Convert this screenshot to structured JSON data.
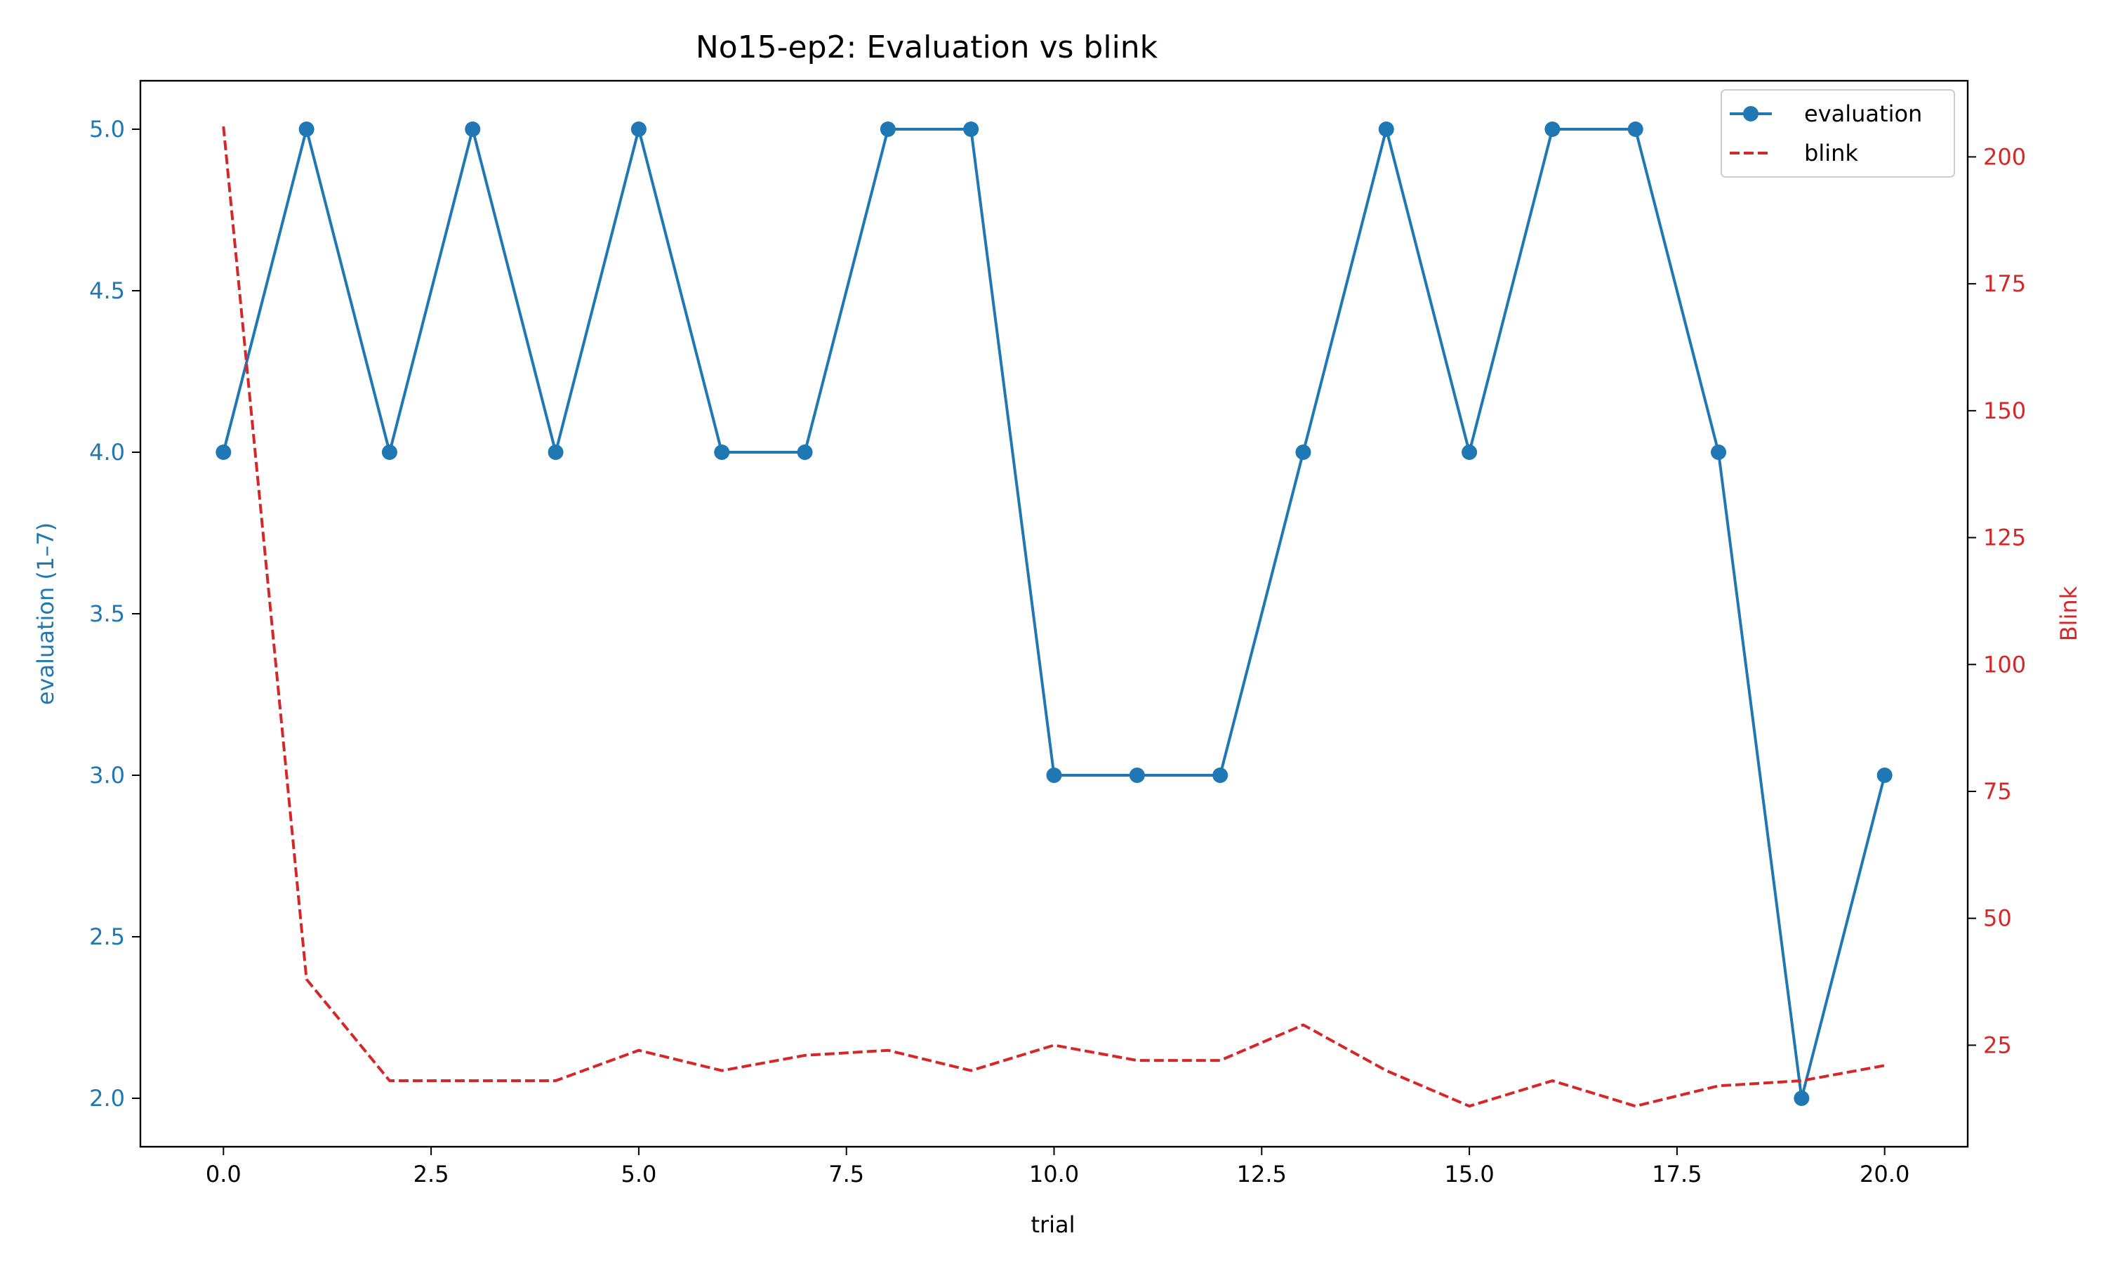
{
  "chart_data": {
    "type": "line",
    "title": "No15-ep2: Evaluation vs blink",
    "xlabel": "trial",
    "ylabel_left": "evaluation (1–7)",
    "ylabel_right": "Blink",
    "x": [
      0,
      1,
      2,
      3,
      4,
      5,
      6,
      7,
      8,
      9,
      10,
      11,
      12,
      13,
      14,
      15,
      16,
      17,
      18,
      19,
      20
    ],
    "xlim": [
      -1,
      21
    ],
    "ylim_left": [
      1.85,
      5.15
    ],
    "ylim_right": [
      5,
      215
    ],
    "x_ticks": [
      "0.0",
      "2.5",
      "5.0",
      "7.5",
      "10.0",
      "12.5",
      "15.0",
      "17.5",
      "20.0"
    ],
    "x_tick_values": [
      0,
      2.5,
      5,
      7.5,
      10,
      12.5,
      15,
      17.5,
      20
    ],
    "y_left_ticks": [
      "2.0",
      "2.5",
      "3.0",
      "3.5",
      "4.0",
      "4.5",
      "5.0"
    ],
    "y_left_tick_values": [
      2.0,
      2.5,
      3.0,
      3.5,
      4.0,
      4.5,
      5.0
    ],
    "y_right_ticks": [
      "25",
      "50",
      "75",
      "100",
      "125",
      "150",
      "175",
      "200"
    ],
    "y_right_tick_values": [
      25,
      50,
      75,
      100,
      125,
      150,
      175,
      200
    ],
    "series": [
      {
        "name": "evaluation",
        "axis": "left",
        "style": "solid-marker",
        "color": "#1f77b4",
        "values": [
          4,
          5,
          4,
          5,
          4,
          5,
          4,
          4,
          5,
          5,
          3,
          3,
          3,
          4,
          5,
          4,
          5,
          5,
          4,
          2,
          3
        ]
      },
      {
        "name": "blink",
        "axis": "right",
        "style": "dashed",
        "color": "#d62728",
        "values": [
          206,
          38,
          18,
          18,
          18,
          24,
          20,
          23,
          24,
          20,
          25,
          22,
          22,
          29,
          20,
          13,
          18,
          13,
          17,
          18,
          21
        ]
      }
    ],
    "legend_position": "top-right",
    "grid": false
  }
}
